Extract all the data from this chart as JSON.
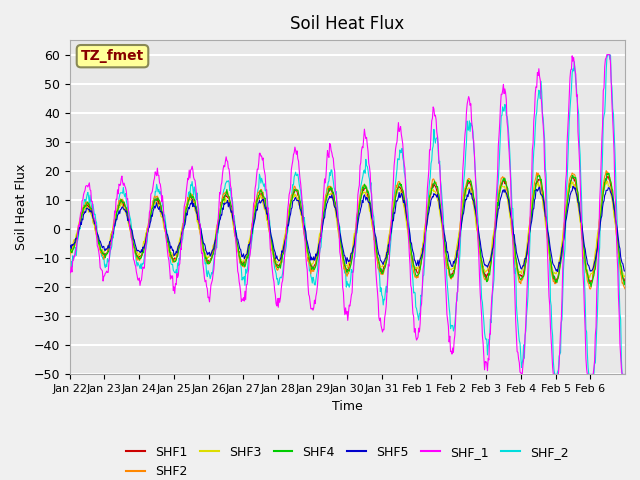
{
  "title": "Soil Heat Flux",
  "ylabel": "Soil Heat Flux",
  "xlabel": "Time",
  "ylim": [
    -50,
    65
  ],
  "yticks": [
    -50,
    -40,
    -30,
    -20,
    -10,
    0,
    10,
    20,
    30,
    40,
    50,
    60
  ],
  "x_tick_labels": [
    "Jan 22",
    "Jan 23",
    "Jan 24",
    "Jan 25",
    "Jan 26",
    "Jan 27",
    "Jan 28",
    "Jan 29",
    "Jan 30",
    "Jan 31",
    "Feb 1",
    "Feb 2",
    "Feb 3",
    "Feb 4",
    "Feb 5",
    "Feb 6"
  ],
  "n_days": 16,
  "series_colors": {
    "SHF1": "#cc0000",
    "SHF2": "#ff8800",
    "SHF3": "#dddd00",
    "SHF4": "#00cc00",
    "SHF5": "#0000cc",
    "SHF_1": "#ff00ff",
    "SHF_2": "#00dddd"
  },
  "plot_bg_color": "#e8e8e8",
  "grid_color": "#ffffff",
  "annotation_text": "TZ_fmet",
  "annotation_bg": "#ffff99",
  "annotation_border": "#888855",
  "annotation_text_color": "#880000"
}
